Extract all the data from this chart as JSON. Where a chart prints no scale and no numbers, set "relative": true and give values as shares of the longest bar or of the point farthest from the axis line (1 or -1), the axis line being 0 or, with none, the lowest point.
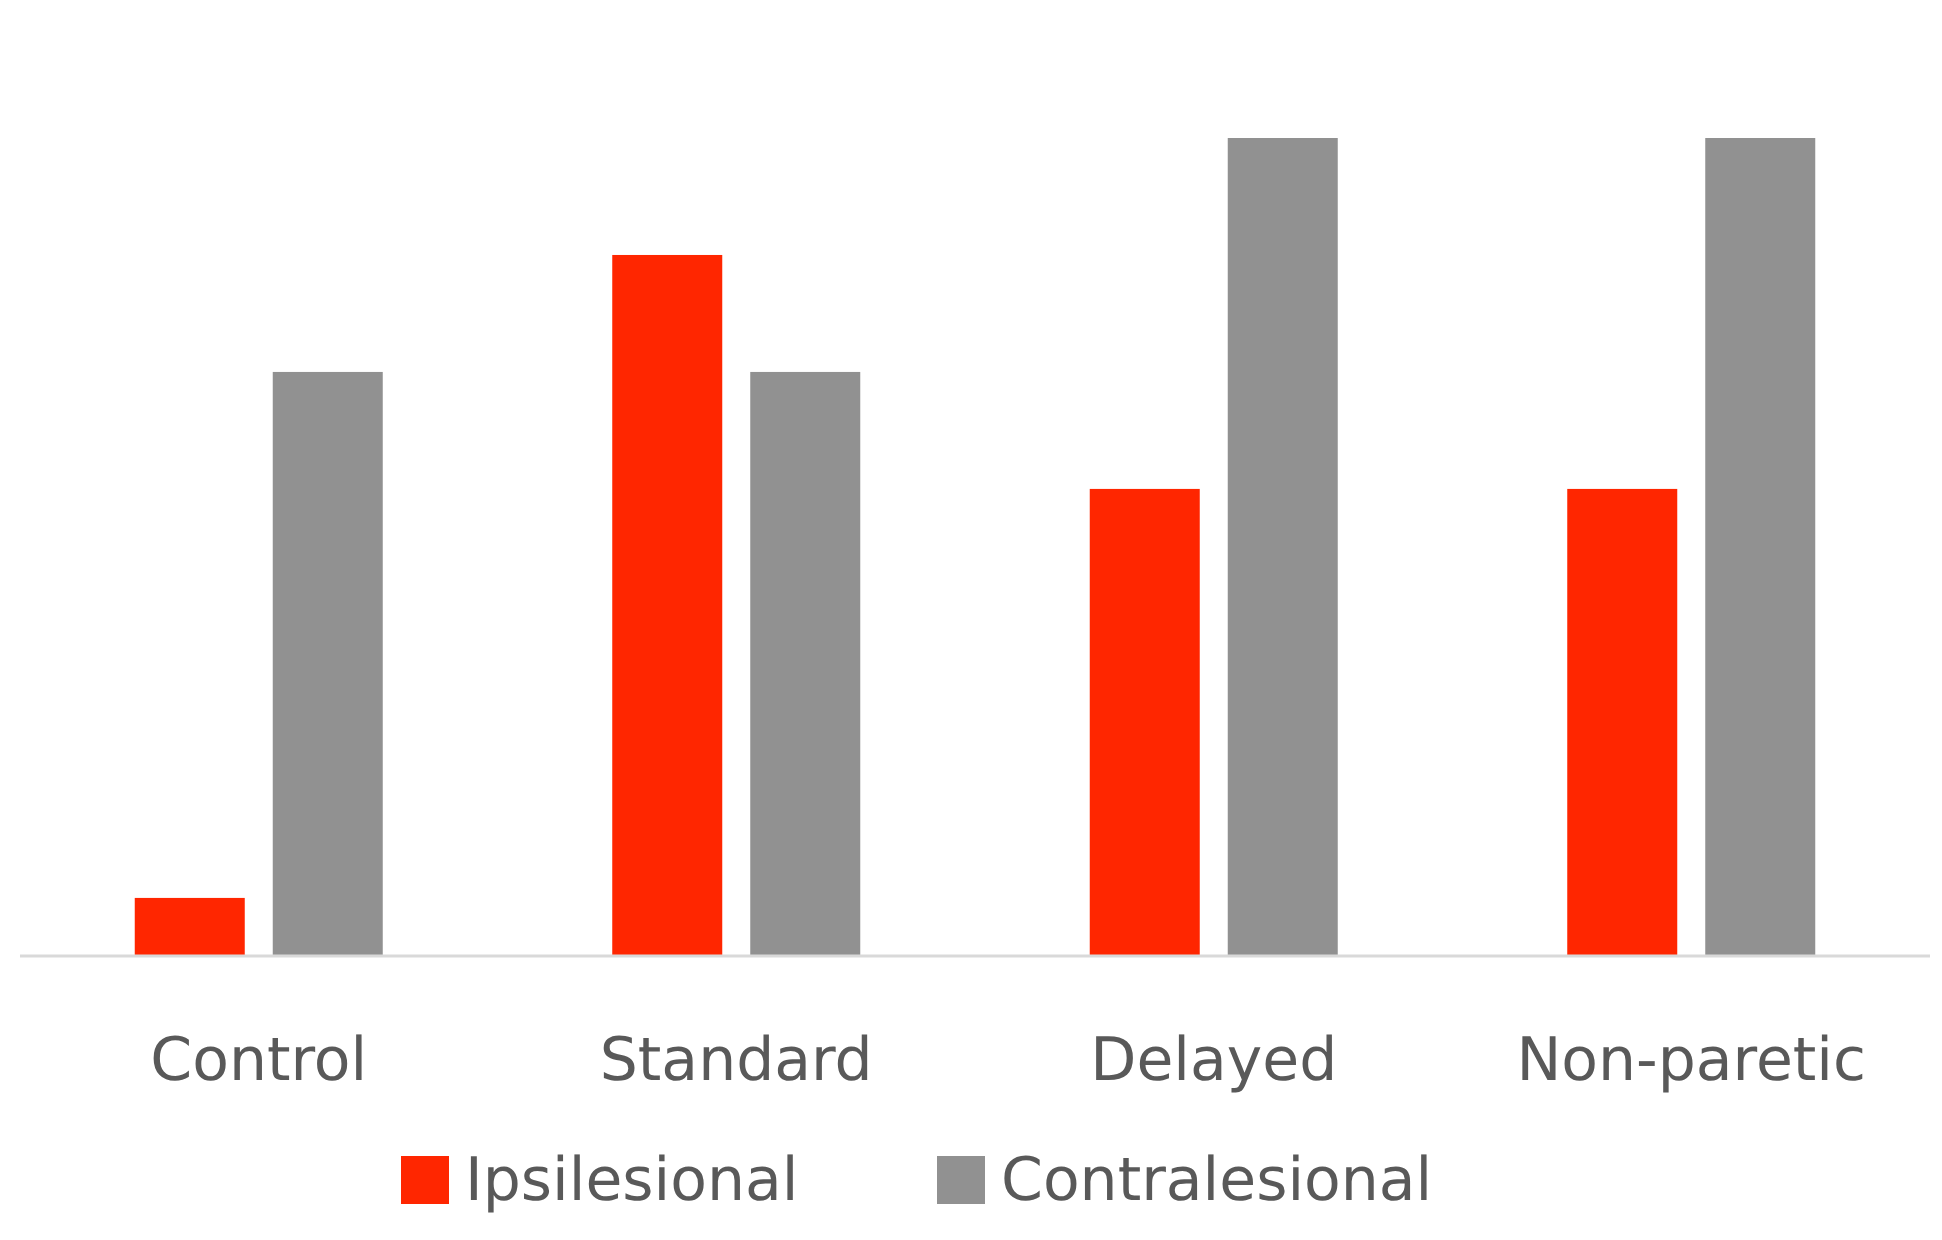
{
  "chart_data": {
    "type": "bar",
    "relative": true,
    "categories": [
      "Control",
      "Standard",
      "Delayed",
      "Non-paretic"
    ],
    "series": [
      {
        "name": "Ipsilesional",
        "color": "#ff2600",
        "values": [
          0.071,
          0.857,
          0.571,
          0.571
        ]
      },
      {
        "name": "Contralesional",
        "color": "#919191",
        "values": [
          0.714,
          0.714,
          1,
          1
        ]
      }
    ],
    "legend": "bottom"
  }
}
